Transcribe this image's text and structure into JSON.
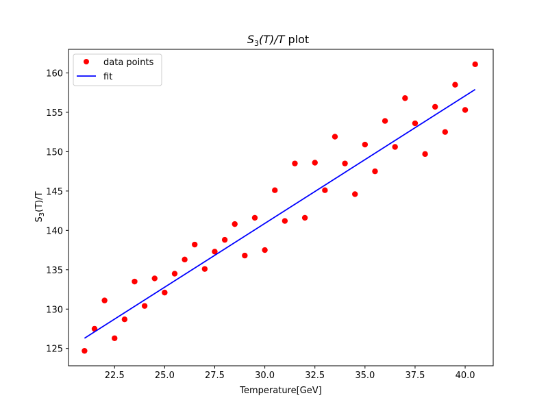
{
  "chart_data": {
    "type": "scatter",
    "title": "S3(T)/T plot",
    "title_parts": {
      "s": "S",
      "sub": "3",
      "rest": "(T)/T",
      "suffix": " plot"
    },
    "xlabel": "Temperature[GeV]",
    "ylabel_parts": {
      "s": "S",
      "sub": "3",
      "rest": "(T)/T"
    },
    "xlim": [
      20.2,
      41.4
    ],
    "ylim": [
      122.8,
      163
    ],
    "xticks": [
      22.5,
      25.0,
      27.5,
      30.0,
      32.5,
      35.0,
      37.5,
      40.0
    ],
    "xtick_labels": [
      "22.5",
      "25.0",
      "27.5",
      "30.0",
      "32.5",
      "35.0",
      "37.5",
      "40.0"
    ],
    "yticks": [
      125,
      130,
      135,
      140,
      145,
      150,
      155,
      160
    ],
    "ytick_labels": [
      "125",
      "130",
      "135",
      "140",
      "145",
      "150",
      "155",
      "160"
    ],
    "grid": false,
    "legend_position": "upper-left",
    "series": [
      {
        "name": "data points",
        "kind": "scatter",
        "color": "#ff0000",
        "x": [
          21.0,
          21.5,
          22.0,
          22.5,
          23.0,
          23.5,
          24.0,
          24.5,
          25.0,
          25.5,
          26.0,
          26.5,
          27.0,
          27.5,
          28.0,
          28.5,
          29.0,
          29.5,
          30.0,
          30.5,
          31.0,
          31.5,
          32.0,
          32.5,
          33.0,
          33.5,
          34.0,
          34.5,
          35.0,
          35.5,
          36.0,
          36.5,
          37.0,
          37.5,
          38.0,
          38.5,
          39.0,
          39.5,
          40.0,
          40.5
        ],
        "y": [
          124.7,
          127.5,
          131.1,
          126.3,
          128.7,
          133.5,
          130.4,
          133.9,
          132.1,
          134.5,
          136.3,
          138.2,
          135.1,
          137.3,
          138.8,
          140.8,
          136.8,
          141.6,
          137.5,
          145.1,
          141.2,
          148.5,
          141.6,
          148.6,
          145.1,
          151.9,
          148.5,
          144.6,
          150.9,
          147.5,
          153.9,
          150.6,
          156.8,
          153.6,
          149.7,
          155.7,
          152.5,
          158.5,
          155.3,
          161.1
        ]
      },
      {
        "name": "fit",
        "kind": "line",
        "color": "#0000ff",
        "x": [
          21.0,
          40.5
        ],
        "y": [
          126.3,
          157.9
        ]
      }
    ]
  }
}
